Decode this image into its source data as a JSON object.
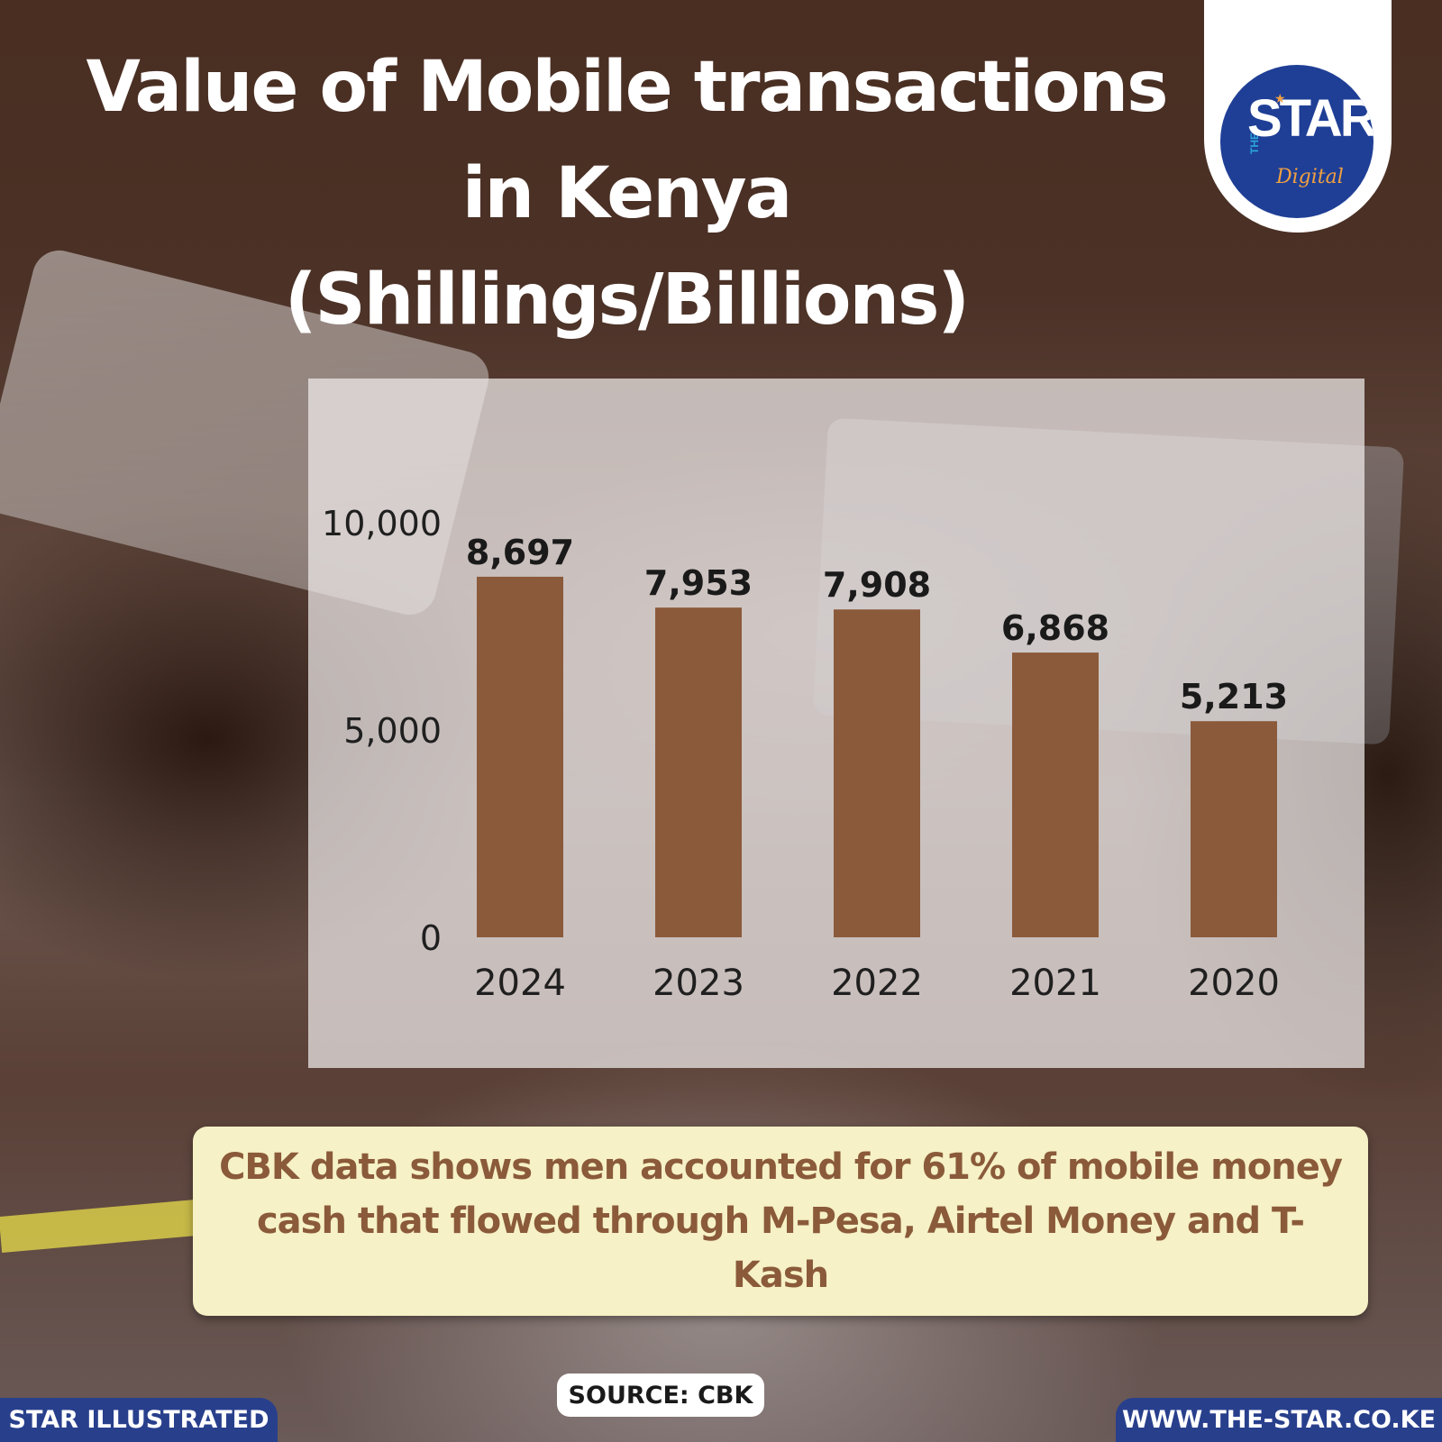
{
  "header": {
    "title_lines": [
      "Value of Mobile transactions",
      "in Kenya",
      "(Shillings/Billions)"
    ]
  },
  "logo": {
    "the": "THE",
    "star": "STAR",
    "digital": "Digital"
  },
  "chart_data": {
    "type": "bar",
    "title": "Value of Mobile transactions in Kenya (Shillings/Billions)",
    "categories": [
      "2024",
      "2023",
      "2022",
      "2021",
      "2020"
    ],
    "values": [
      8697,
      7953,
      7908,
      6868,
      5213
    ],
    "value_labels": [
      "8,697",
      "7,953",
      "7,908",
      "6,868",
      "5,213"
    ],
    "yticks": [
      "10,000",
      "5,000",
      "0"
    ],
    "ytick_values": [
      10000,
      5000,
      0
    ],
    "ylim": [
      0,
      10000
    ],
    "grid": false,
    "bar_color": "#8b5a3b"
  },
  "callout": {
    "text": "CBK data shows men accounted for 61% of mobile money cash that flowed through M-Pesa, Airtel Money and T-Kash"
  },
  "source": "SOURCE: CBK",
  "footer": {
    "left": "STAR ILLUSTRATED",
    "right": "WWW.THE-STAR.CO.KE"
  },
  "colors": {
    "footer_blue": "#283f8c",
    "logo_blue": "#1f3f96",
    "callout_bg": "#f6f1c6",
    "callout_text": "#8a5a3a"
  }
}
